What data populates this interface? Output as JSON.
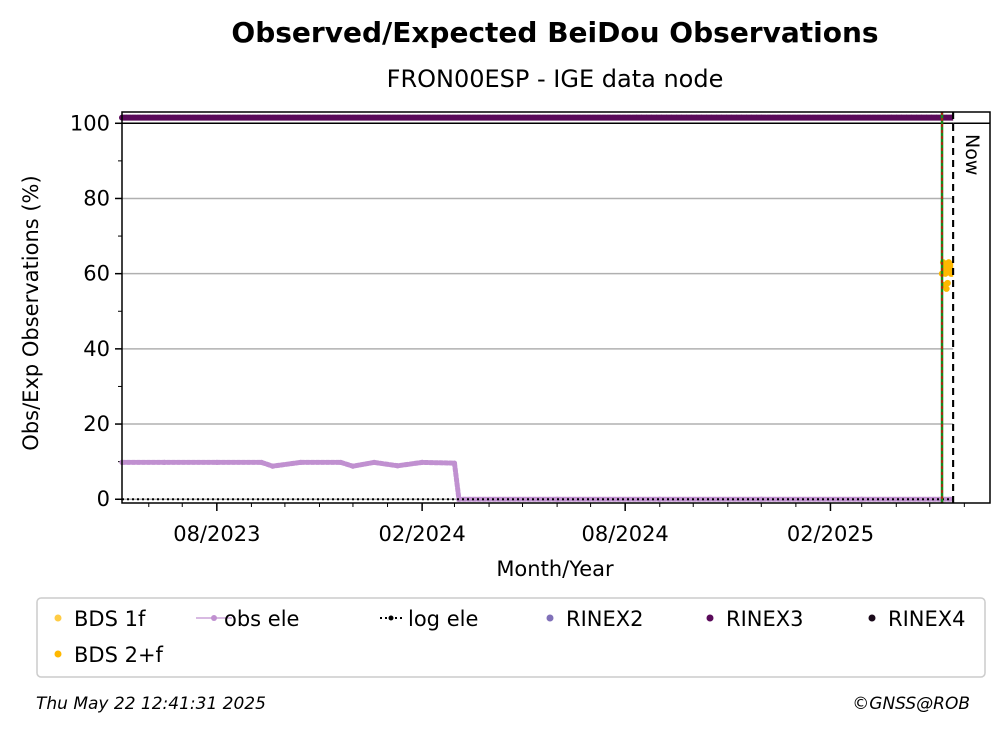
{
  "chart_data": {
    "type": "scatter",
    "title": "Observed/Expected BeiDou Observations",
    "subtitle": "FRON00ESP - IGE data node",
    "xlabel": "Month/Year",
    "ylabel": "Obs/Exp Observations (%)",
    "ylim": [
      -1,
      103
    ],
    "xlim": [
      "2023-05-08",
      "2025-06-24"
    ],
    "x_ticks": [
      {
        "date": "2023-08-01",
        "label": "08/2023"
      },
      {
        "date": "2024-02-01",
        "label": "02/2024"
      },
      {
        "date": "2024-08-01",
        "label": "08/2024"
      },
      {
        "date": "2025-02-01",
        "label": "02/2025"
      }
    ],
    "y_ticks": [
      0,
      20,
      40,
      60,
      80,
      100
    ],
    "grid": "horizontal",
    "now_label": "Now",
    "markers": [
      {
        "date": "2025-05-12",
        "label": "",
        "color": "#1a8a1a"
      },
      {
        "date": "2025-05-22",
        "label": "Now",
        "color": "#000000"
      }
    ],
    "series": [
      {
        "name": "BDS 1f",
        "color": "#ffcc44",
        "style": "dot",
        "points": []
      },
      {
        "name": "obs ele",
        "color": "#c090d0",
        "style": "line-dot",
        "points": [
          [
            "2023-05-08",
            9.8
          ],
          [
            "2023-06-15",
            9.8
          ],
          [
            "2023-08-01",
            9.8
          ],
          [
            "2023-09-10",
            9.8
          ],
          [
            "2023-09-20",
            8.8
          ],
          [
            "2023-10-15",
            9.8
          ],
          [
            "2023-11-20",
            9.8
          ],
          [
            "2023-12-01",
            8.8
          ],
          [
            "2023-12-20",
            9.8
          ],
          [
            "2024-01-10",
            8.9
          ],
          [
            "2024-02-01",
            9.8
          ],
          [
            "2024-03-01",
            9.6
          ],
          [
            "2024-03-05",
            0.0
          ],
          [
            "2024-06-01",
            0.0
          ],
          [
            "2024-09-01",
            0.0
          ],
          [
            "2024-12-01",
            0.0
          ],
          [
            "2025-03-01",
            0.0
          ],
          [
            "2025-05-22",
            0.0
          ]
        ]
      },
      {
        "name": "log ele",
        "color": "#000000",
        "style": "dotted-line",
        "points": [
          [
            "2023-05-08",
            0
          ],
          [
            "2025-05-22",
            0
          ]
        ]
      },
      {
        "name": "RINEX2",
        "color": "#8070b8",
        "style": "dot",
        "points": []
      },
      {
        "name": "RINEX3",
        "color": "#5a0a5a",
        "style": "dot",
        "points": [
          [
            "2023-05-08",
            101.5
          ],
          [
            "2025-05-22",
            101.5
          ]
        ]
      },
      {
        "name": "RINEX4",
        "color": "#1a0a1a",
        "style": "dot",
        "points": []
      },
      {
        "name": "BDS 2+f",
        "color": "#ffb800",
        "style": "dot",
        "points": [
          [
            "2025-05-12",
            60
          ],
          [
            "2025-05-13",
            63
          ],
          [
            "2025-05-14",
            61
          ],
          [
            "2025-05-14",
            57
          ],
          [
            "2025-05-15",
            62
          ],
          [
            "2025-05-15",
            60
          ],
          [
            "2025-05-16",
            56
          ],
          [
            "2025-05-16",
            61
          ],
          [
            "2025-05-17",
            57.5
          ],
          [
            "2025-05-17",
            62
          ],
          [
            "2025-05-18",
            63
          ],
          [
            "2025-05-18",
            60.5
          ],
          [
            "2025-05-19",
            61
          ],
          [
            "2025-05-19",
            62
          ],
          [
            "2025-05-20",
            60
          ],
          [
            "2025-05-20",
            62.5
          ],
          [
            "2025-05-21",
            61.5
          ],
          [
            "2025-05-21",
            60
          ],
          [
            "2025-05-22",
            61
          ]
        ]
      }
    ],
    "legend": {
      "placement": "bottom",
      "items": [
        {
          "label": "BDS 1f",
          "color": "#ffcc44",
          "style": "dot"
        },
        {
          "label": "obs ele",
          "color": "#c090d0",
          "style": "line-dot"
        },
        {
          "label": "log ele",
          "color": "#000000",
          "style": "dotted-line"
        },
        {
          "label": "RINEX2",
          "color": "#8070b8",
          "style": "dot"
        },
        {
          "label": "RINEX3",
          "color": "#5a0a5a",
          "style": "dot"
        },
        {
          "label": "RINEX4",
          "color": "#1a0a1a",
          "style": "dot"
        },
        {
          "label": "BDS 2+f",
          "color": "#ffb800",
          "style": "dot"
        }
      ]
    }
  },
  "footer": {
    "timestamp": "Thu May 22 12:41:31 2025",
    "credit": "©GNSS@ROB"
  }
}
